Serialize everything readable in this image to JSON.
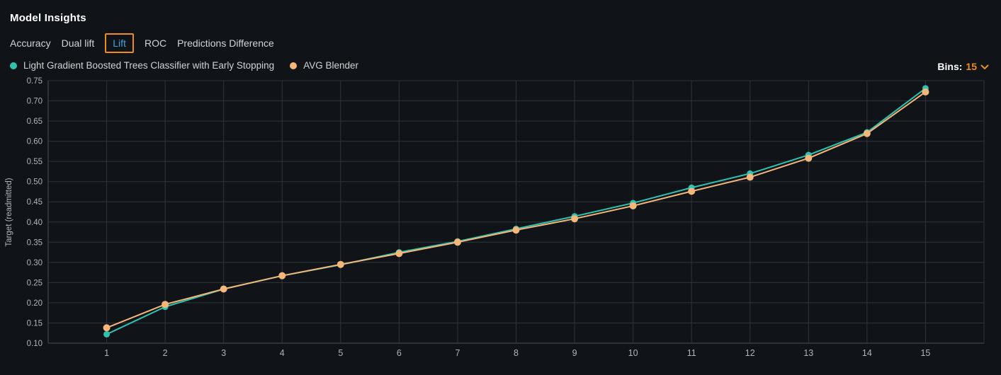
{
  "header": {
    "title": "Model Insights"
  },
  "tabs": [
    {
      "label": "Accuracy",
      "active": false
    },
    {
      "label": "Dual lift",
      "active": false
    },
    {
      "label": "Lift",
      "active": true
    },
    {
      "label": "ROC",
      "active": false
    },
    {
      "label": "Predictions Difference",
      "active": false
    }
  ],
  "bins": {
    "label": "Bins:",
    "value": "15"
  },
  "colors": {
    "background": "#101418",
    "accent_orange": "#ef8c1e",
    "active_tab_text": "#42a1d8",
    "grid": "#2e343a",
    "axis": "#4a5056",
    "tick_text": "#b0b4b7",
    "series_teal": "#2fc2b2",
    "series_orange": "#f5b679"
  },
  "chart_data": {
    "type": "line",
    "title": "Lift chart",
    "x": [
      1,
      2,
      3,
      4,
      5,
      6,
      7,
      8,
      9,
      10,
      11,
      12,
      13,
      14,
      15
    ],
    "xlabel": "",
    "ylabel": "Target (readmitted)",
    "ylim": [
      0.1,
      0.75
    ],
    "ytick_step": 0.05,
    "grid": true,
    "legend_position": "top-left",
    "series": [
      {
        "name": "Light Gradient Boosted Trees Classifier with Early Stopping",
        "color": "#2fc2b2",
        "marker_radius": 4.5,
        "values": [
          0.122,
          0.19,
          0.234,
          0.267,
          0.294,
          0.325,
          0.352,
          0.383,
          0.414,
          0.447,
          0.485,
          0.52,
          0.566,
          0.622,
          0.731
        ]
      },
      {
        "name": "AVG Blender",
        "color": "#f5b679",
        "marker_radius": 5,
        "values": [
          0.138,
          0.196,
          0.234,
          0.267,
          0.295,
          0.322,
          0.35,
          0.38,
          0.408,
          0.44,
          0.476,
          0.511,
          0.558,
          0.619,
          0.722
        ]
      }
    ]
  }
}
